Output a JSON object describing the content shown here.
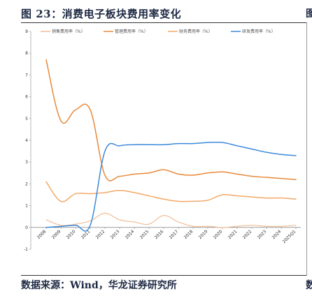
{
  "figure": {
    "title": "图 23：消费电子板块费用率变化",
    "source": "数据来源：Wind，华龙证券研究所",
    "right_glyph_top": "图",
    "right_glyph_bottom": "数"
  },
  "chart_data": {
    "type": "line",
    "title": "",
    "xlabel": "",
    "ylabel": "",
    "ylim": [
      -1,
      9
    ],
    "yticks": [
      -1,
      0,
      1,
      2,
      3,
      4,
      5,
      6,
      7,
      8,
      9
    ],
    "legend_position": "top",
    "x": [
      "2008",
      "2009",
      "2010",
      "2011",
      "2012",
      "2013",
      "2014",
      "2015",
      "2016",
      "2017",
      "2018",
      "2019",
      "2020",
      "2021",
      "2022",
      "2023",
      "2024",
      "2025Q1"
    ],
    "series": [
      {
        "name": "销售费用率（%）",
        "color": "#f2bd95",
        "values": [
          0.35,
          0.1,
          0.15,
          0.3,
          0.65,
          0.35,
          0.25,
          0.15,
          0.55,
          0.25,
          0.05,
          0.05,
          0.0,
          0.05,
          0.1,
          0.05,
          0.05,
          0.1
        ]
      },
      {
        "name": "管理费用率（%）",
        "color": "#e8893a",
        "values": [
          7.7,
          4.9,
          5.4,
          5.4,
          2.4,
          2.35,
          2.45,
          2.5,
          2.65,
          2.45,
          2.4,
          2.5,
          2.55,
          2.45,
          2.35,
          2.3,
          2.25,
          2.2
        ]
      },
      {
        "name": "财务费用率（%）",
        "color": "#f4a866",
        "values": [
          2.1,
          1.2,
          1.55,
          1.55,
          1.6,
          1.7,
          1.6,
          1.45,
          1.3,
          1.2,
          1.2,
          1.25,
          1.5,
          1.45,
          1.4,
          1.35,
          1.35,
          1.3
        ]
      },
      {
        "name": "研发费用率（%）",
        "color": "#3b8ad9",
        "values": [
          0.0,
          0.05,
          0.1,
          0.1,
          3.5,
          3.75,
          3.8,
          3.8,
          3.8,
          3.85,
          3.85,
          3.9,
          3.9,
          3.75,
          3.6,
          3.45,
          3.35,
          3.3
        ]
      }
    ]
  }
}
